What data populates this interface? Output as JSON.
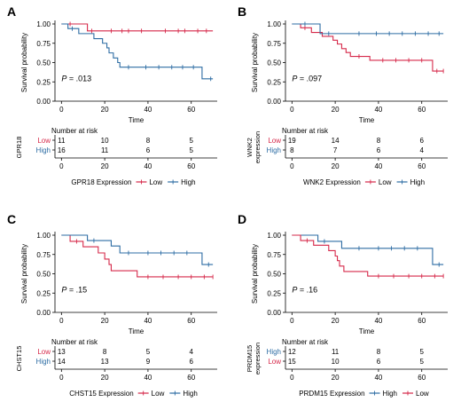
{
  "chart_data": [
    {
      "type": "line",
      "panel_label": "A",
      "gene": "GPR18",
      "ylabel": "Survival probability",
      "xlabel": "Time",
      "p_value": ".013",
      "xlim": [
        -3,
        72
      ],
      "ylim": [
        0,
        1
      ],
      "xticks": [
        0,
        20,
        40,
        60
      ],
      "yticks": [
        "0.00",
        "0.25",
        "0.50",
        "0.75",
        "1.00"
      ],
      "legend_prefix": "GPR18 Expression",
      "series": [
        {
          "name": "Low",
          "color": "#d6294a",
          "steps": [
            [
              0,
              1.0
            ],
            [
              12,
              0.91
            ],
            [
              70,
              0.91
            ]
          ],
          "censors": [
            [
              4,
              1.0
            ],
            [
              14,
              0.91
            ],
            [
              23,
              0.91
            ],
            [
              28,
              0.91
            ],
            [
              31,
              0.91
            ],
            [
              37,
              0.91
            ],
            [
              48,
              0.91
            ],
            [
              54,
              0.91
            ],
            [
              57,
              0.91
            ],
            [
              63,
              0.91
            ],
            [
              67,
              0.91
            ]
          ]
        },
        {
          "name": "High",
          "color": "#2e6da4",
          "steps": [
            [
              0,
              1.0
            ],
            [
              3,
              0.94
            ],
            [
              8,
              0.875
            ],
            [
              15,
              0.81
            ],
            [
              19,
              0.75
            ],
            [
              21,
              0.69
            ],
            [
              22,
              0.625
            ],
            [
              24,
              0.56
            ],
            [
              26,
              0.5
            ],
            [
              27,
              0.44
            ],
            [
              36,
              0.44
            ],
            [
              65,
              0.29
            ],
            [
              70,
              0.29
            ]
          ],
          "censors": [
            [
              5,
              0.94
            ],
            [
              31,
              0.44
            ],
            [
              39,
              0.44
            ],
            [
              45,
              0.44
            ],
            [
              51,
              0.44
            ],
            [
              56,
              0.44
            ],
            [
              61,
              0.44
            ],
            [
              69,
              0.29
            ]
          ]
        }
      ],
      "risk_title": "Number at risk",
      "risk_ylabel": "GPR18",
      "risk_times": [
        0,
        20,
        40,
        60
      ],
      "risk_rows": [
        {
          "label": "Low",
          "color": "#d6294a",
          "values": [
            "11",
            "10",
            "8",
            "5"
          ]
        },
        {
          "label": "High",
          "color": "#2e6da4",
          "values": [
            "16",
            "11",
            "6",
            "5"
          ]
        }
      ]
    },
    {
      "type": "line",
      "panel_label": "B",
      "gene": "WNK2",
      "ylabel": "Survival probability",
      "xlabel": "Time",
      "p_value": ".097",
      "xlim": [
        -3,
        72
      ],
      "ylim": [
        0,
        1
      ],
      "xticks": [
        0,
        20,
        40,
        60
      ],
      "yticks": [
        "0.00",
        "0.25",
        "0.50",
        "0.75",
        "1.00"
      ],
      "ylabel2": "expression",
      "legend_prefix": "WNK2 Expression",
      "series": [
        {
          "name": "Low",
          "color": "#d6294a",
          "steps": [
            [
              0,
              1.0
            ],
            [
              4,
              0.95
            ],
            [
              9,
              0.89
            ],
            [
              14,
              0.84
            ],
            [
              19,
              0.79
            ],
            [
              21,
              0.74
            ],
            [
              23,
              0.68
            ],
            [
              25,
              0.63
            ],
            [
              27,
              0.58
            ],
            [
              36,
              0.53
            ],
            [
              65,
              0.39
            ],
            [
              70,
              0.39
            ]
          ],
          "censors": [
            [
              6,
              0.95
            ],
            [
              31,
              0.58
            ],
            [
              42,
              0.53
            ],
            [
              48,
              0.53
            ],
            [
              54,
              0.53
            ],
            [
              60,
              0.53
            ],
            [
              67,
              0.39
            ],
            [
              70,
              0.39
            ]
          ]
        },
        {
          "name": "High",
          "color": "#2e6da4",
          "steps": [
            [
              0,
              1.0
            ],
            [
              13,
              0.875
            ],
            [
              70,
              0.875
            ]
          ],
          "censors": [
            [
              6,
              1.0
            ],
            [
              17,
              0.875
            ],
            [
              31,
              0.875
            ],
            [
              39,
              0.875
            ],
            [
              45,
              0.875
            ],
            [
              51,
              0.875
            ],
            [
              57,
              0.875
            ],
            [
              63,
              0.875
            ],
            [
              68,
              0.875
            ]
          ]
        }
      ],
      "risk_title": "Number at risk",
      "risk_ylabel": "WNK2",
      "risk_times": [
        0,
        20,
        40,
        60
      ],
      "risk_rows": [
        {
          "label": "Low",
          "color": "#d6294a",
          "values": [
            "19",
            "14",
            "8",
            "6"
          ]
        },
        {
          "label": "High",
          "color": "#2e6da4",
          "values": [
            "8",
            "7",
            "6",
            "4"
          ]
        }
      ]
    },
    {
      "type": "line",
      "panel_label": "C",
      "gene": "CHST15",
      "ylabel": "Survival probability",
      "xlabel": "Time",
      "p_value": ".15",
      "xlim": [
        -3,
        72
      ],
      "ylim": [
        0,
        1
      ],
      "xticks": [
        0,
        20,
        40,
        60
      ],
      "yticks": [
        "0.00",
        "0.25",
        "0.50",
        "0.75",
        "1.00"
      ],
      "legend_prefix": "CHST15 Expression",
      "series": [
        {
          "name": "Low",
          "color": "#d6294a",
          "steps": [
            [
              0,
              1.0
            ],
            [
              4,
              0.92
            ],
            [
              10,
              0.85
            ],
            [
              17,
              0.77
            ],
            [
              20,
              0.69
            ],
            [
              22,
              0.62
            ],
            [
              23,
              0.54
            ],
            [
              35,
              0.46
            ],
            [
              70,
              0.46
            ]
          ],
          "censors": [
            [
              7,
              0.92
            ],
            [
              40,
              0.46
            ],
            [
              47,
              0.46
            ],
            [
              54,
              0.46
            ],
            [
              60,
              0.46
            ],
            [
              66,
              0.46
            ],
            [
              70,
              0.46
            ]
          ]
        },
        {
          "name": "High",
          "color": "#2e6da4",
          "steps": [
            [
              0,
              1.0
            ],
            [
              12,
              0.93
            ],
            [
              23,
              0.86
            ],
            [
              27,
              0.77
            ],
            [
              65,
              0.62
            ],
            [
              70,
              0.62
            ]
          ],
          "censors": [
            [
              15,
              0.93
            ],
            [
              31,
              0.77
            ],
            [
              40,
              0.77
            ],
            [
              46,
              0.77
            ],
            [
              52,
              0.77
            ],
            [
              58,
              0.77
            ],
            [
              68,
              0.62
            ]
          ]
        }
      ],
      "risk_title": "Number at risk",
      "risk_ylabel": "CHST15",
      "risk_times": [
        0,
        20,
        40,
        60
      ],
      "risk_rows": [
        {
          "label": "Low",
          "color": "#d6294a",
          "values": [
            "13",
            "8",
            "5",
            "4"
          ]
        },
        {
          "label": "High",
          "color": "#2e6da4",
          "values": [
            "14",
            "13",
            "9",
            "6"
          ]
        }
      ]
    },
    {
      "type": "line",
      "panel_label": "D",
      "gene": "PRDM15",
      "ylabel": "Survival probability",
      "xlabel": "Time",
      "p_value": ".16",
      "xlim": [
        -3,
        72
      ],
      "ylim": [
        0,
        1
      ],
      "xticks": [
        0,
        20,
        40,
        60
      ],
      "yticks": [
        "0.00",
        "0.25",
        "0.50",
        "0.75",
        "1.00"
      ],
      "ylabel2": "expression",
      "legend_prefix": "PRDM15 Expression",
      "series": [
        {
          "name": "High",
          "color": "#2e6da4",
          "steps": [
            [
              0,
              1.0
            ],
            [
              12,
              0.92
            ],
            [
              23,
              0.83
            ],
            [
              65,
              0.62
            ],
            [
              70,
              0.62
            ]
          ],
          "censors": [
            [
              15,
              0.92
            ],
            [
              31,
              0.83
            ],
            [
              40,
              0.83
            ],
            [
              46,
              0.83
            ],
            [
              52,
              0.83
            ],
            [
              58,
              0.83
            ],
            [
              68,
              0.62
            ]
          ]
        },
        {
          "name": "Low",
          "color": "#d6294a",
          "steps": [
            [
              0,
              1.0
            ],
            [
              4,
              0.93
            ],
            [
              10,
              0.87
            ],
            [
              17,
              0.8
            ],
            [
              20,
              0.73
            ],
            [
              21,
              0.67
            ],
            [
              22,
              0.6
            ],
            [
              24,
              0.53
            ],
            [
              35,
              0.47
            ],
            [
              70,
              0.47
            ]
          ],
          "censors": [
            [
              7,
              0.93
            ],
            [
              40,
              0.47
            ],
            [
              47,
              0.47
            ],
            [
              54,
              0.47
            ],
            [
              60,
              0.47
            ],
            [
              66,
              0.47
            ],
            [
              70,
              0.47
            ]
          ]
        }
      ],
      "risk_title": "Number at risk",
      "risk_ylabel": "PRDM15",
      "risk_times": [
        0,
        20,
        40,
        60
      ],
      "risk_rows": [
        {
          "label": "High",
          "color": "#2e6da4",
          "values": [
            "12",
            "11",
            "8",
            "5"
          ]
        },
        {
          "label": "Low",
          "color": "#d6294a",
          "values": [
            "15",
            "10",
            "6",
            "5"
          ]
        }
      ]
    }
  ]
}
